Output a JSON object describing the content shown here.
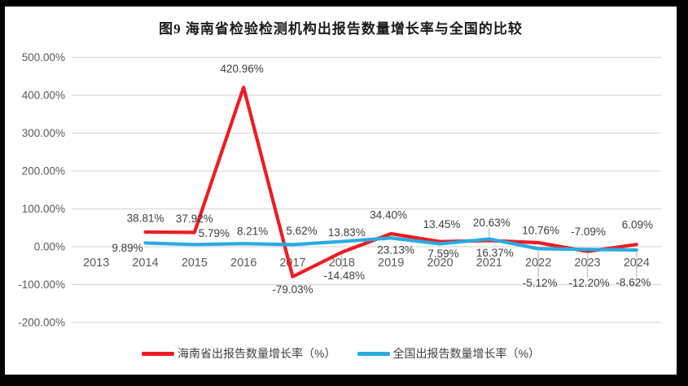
{
  "chart_data": {
    "type": "line",
    "title": "图9 海南省检验检测机构出报告数量增长率与全国的比较",
    "categories": [
      "2013",
      "2014",
      "2015",
      "2016",
      "2017",
      "2018",
      "2019",
      "2020",
      "2021",
      "2022",
      "2023",
      "2024"
    ],
    "series": [
      {
        "name": "海南省出报告数量增长率（%）",
        "color": "#ED1C24",
        "values": [
          null,
          38.81,
          37.92,
          420.96,
          -79.03,
          -14.48,
          34.4,
          13.45,
          16.37,
          10.76,
          -12.2,
          6.09
        ]
      },
      {
        "name": "全国出报告数量增长率（%）",
        "color": "#29ABE2",
        "values": [
          null,
          9.89,
          5.79,
          8.21,
          5.62,
          13.83,
          23.13,
          7.59,
          20.63,
          -5.12,
          -7.09,
          -8.62
        ]
      }
    ],
    "ylim": [
      -200,
      500
    ],
    "y_tick_step": 100,
    "y_tick_labels": [
      "500.00%",
      "400.00%",
      "300.00%",
      "200.00%",
      "100.00%",
      "0.00%",
      "-100.00%",
      "-200.00%"
    ],
    "value_label_format": "0.00%",
    "grid": true,
    "legend_position": "bottom",
    "colors": {
      "grid": "#D9D9D9",
      "leader_line": "#BFBFBF",
      "axis_text": "#595959",
      "data_label_text": "#3D3D3D",
      "title_text": "#1A1A1A",
      "frame": "#000000",
      "background": "#FFFFFF"
    }
  }
}
